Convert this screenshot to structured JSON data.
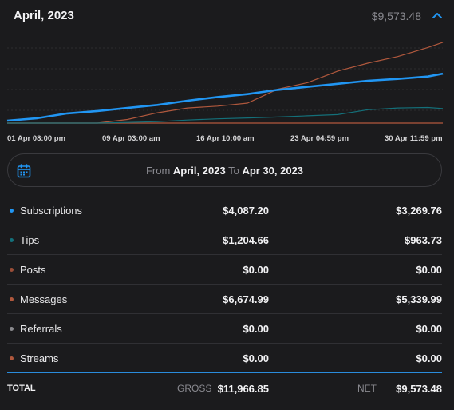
{
  "header": {
    "title": "April, 2023",
    "total": "$9,573.48"
  },
  "chart": {
    "x_labels": [
      "01 Apr 08:00 pm",
      "09 Apr 03:00 am",
      "16 Apr 10:00 am",
      "23 Apr 04:59 pm",
      "30 Apr 11:59 pm"
    ]
  },
  "chart_data": {
    "type": "line",
    "x": [
      1,
      3,
      5,
      7,
      9,
      11,
      13,
      15,
      17,
      19,
      21,
      23,
      25,
      27,
      29,
      30
    ],
    "xlabels": [
      "01 Apr 08:00 pm",
      "09 Apr 03:00 am",
      "16 Apr 10:00 am",
      "23 Apr 04:59 pm",
      "30 Apr 11:59 pm"
    ],
    "ylim": [
      0,
      7000
    ],
    "series": [
      {
        "name": "Messages",
        "values": [
          0,
          0,
          0,
          0,
          300,
          850,
          1250,
          1400,
          1650,
          2800,
          3350,
          4300,
          4950,
          5500,
          6250,
          6675
        ]
      },
      {
        "name": "Subscriptions",
        "values": [
          200,
          400,
          800,
          1000,
          1250,
          1500,
          1850,
          2150,
          2400,
          2750,
          3000,
          3250,
          3500,
          3650,
          3850,
          4090
        ]
      },
      {
        "name": "Tips",
        "values": [
          0,
          0,
          0,
          0,
          50,
          120,
          250,
          350,
          420,
          500,
          600,
          700,
          1100,
          1250,
          1290,
          1205
        ]
      }
    ],
    "grid": true
  },
  "range": {
    "from_label": "From",
    "from": "April, 2023",
    "to_label": "To",
    "to": "Apr 30, 2023"
  },
  "rows": [
    {
      "label": "Subscriptions",
      "gross": "$4,087.20",
      "net": "$3,269.76",
      "color": "#2196f3"
    },
    {
      "label": "Tips",
      "gross": "$1,204.66",
      "net": "$963.73",
      "color": "#14707a"
    },
    {
      "label": "Posts",
      "gross": "$0.00",
      "net": "$0.00",
      "color": "#9a4e38"
    },
    {
      "label": "Messages",
      "gross": "$6,674.99",
      "net": "$5,339.99",
      "color": "#b0583d"
    },
    {
      "label": "Referrals",
      "gross": "$0.00",
      "net": "$0.00",
      "color": "#8a8a8e"
    },
    {
      "label": "Streams",
      "gross": "$0.00",
      "net": "$0.00",
      "color": "#b0583d"
    }
  ],
  "total": {
    "label": "TOTAL",
    "gross_label": "GROSS",
    "gross": "$11,966.85",
    "net_label": "NET",
    "net": "$9,573.48"
  },
  "colors": {
    "accent": "#2196f3",
    "background": "#1b1b1d"
  },
  "icons": {
    "collapse": "chevron-up-icon",
    "calendar": "calendar-icon"
  }
}
